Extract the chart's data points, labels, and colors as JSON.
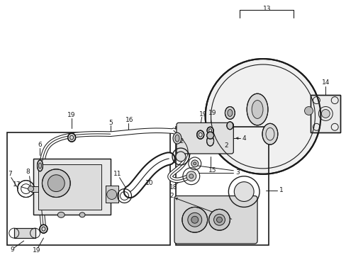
{
  "bg": "#ffffff",
  "lc": "#1a1a1a",
  "fc": "#1a1a1a",
  "lw_thin": 0.7,
  "lw_med": 1.0,
  "lw_thick": 1.4,
  "fs": 6.5,
  "fig_w": 4.89,
  "fig_h": 3.6,
  "dpi": 100
}
